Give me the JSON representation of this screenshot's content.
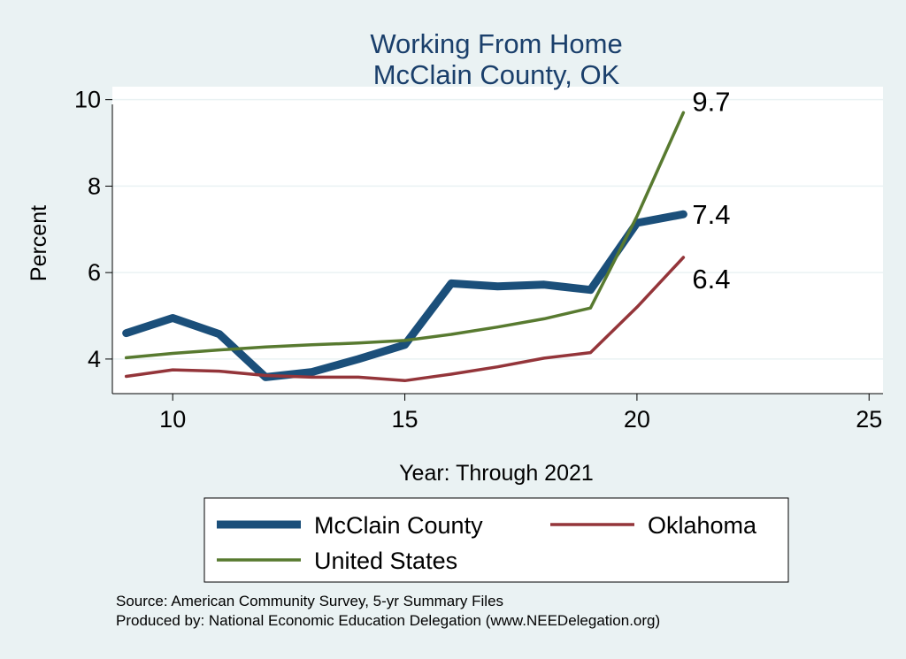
{
  "chart_data": {
    "type": "line",
    "title": [
      "Working From Home",
      "McClain County, OK"
    ],
    "xlabel": "Year: Through 2021",
    "ylabel": "Percent",
    "xlim": [
      8.7,
      25.3
    ],
    "ylim": [
      3.2,
      10.3
    ],
    "xticks": [
      10,
      15,
      20,
      25
    ],
    "yticks": [
      4,
      6,
      8,
      10
    ],
    "grid": true,
    "legend_position": "bottom",
    "series": [
      {
        "name": "McClain County",
        "color": "#1b4f7a",
        "x": [
          9,
          10,
          11,
          12,
          13,
          14,
          15,
          16,
          17,
          18,
          19,
          20,
          21
        ],
        "values": [
          4.6,
          4.95,
          4.58,
          3.58,
          3.7,
          4.0,
          4.33,
          5.75,
          5.68,
          5.72,
          5.6,
          7.15,
          7.35
        ],
        "end_label": "7.4"
      },
      {
        "name": "Oklahoma",
        "color": "#94353a",
        "x": [
          9,
          10,
          11,
          12,
          13,
          14,
          15,
          16,
          17,
          18,
          19,
          20,
          21
        ],
        "values": [
          3.6,
          3.75,
          3.72,
          3.62,
          3.58,
          3.58,
          3.5,
          3.65,
          3.82,
          4.02,
          4.15,
          5.2,
          6.35
        ],
        "end_label": "6.4"
      },
      {
        "name": "United States",
        "color": "#587a30",
        "x": [
          9,
          10,
          11,
          12,
          13,
          14,
          15,
          16,
          17,
          18,
          19,
          20,
          21
        ],
        "values": [
          4.03,
          4.13,
          4.21,
          4.28,
          4.33,
          4.37,
          4.43,
          4.57,
          4.74,
          4.93,
          5.18,
          7.3,
          9.7
        ],
        "end_label": "9.7"
      }
    ],
    "notes": [
      "Source: American Community Survey, 5-yr Summary Files",
      "Produced by: National Economic Education Delegation (www.NEEDelegation.org)"
    ]
  }
}
